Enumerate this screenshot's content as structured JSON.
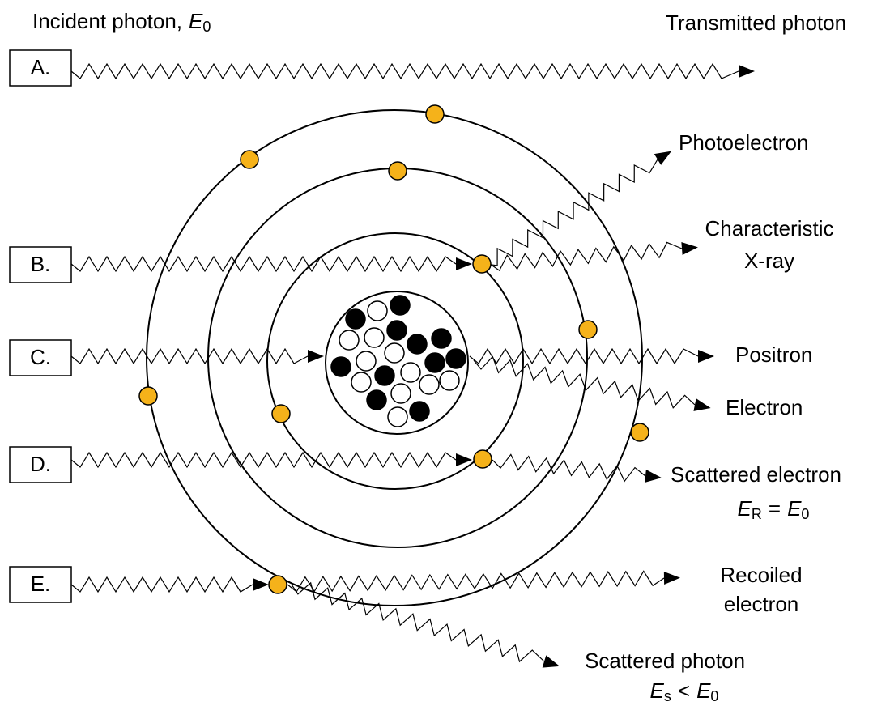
{
  "rows": [
    {
      "label": "A."
    },
    {
      "label": "B."
    },
    {
      "label": "C."
    },
    {
      "label": "D."
    },
    {
      "label": "E."
    }
  ],
  "incident_label": {
    "text": "Incident photon,",
    "symbol": "E",
    "subscript": "0"
  },
  "outcomes": {
    "transmitted": "Transmitted photon",
    "photoelectron": "Photoelectron",
    "characteristic": [
      "Characteristic",
      "X-ray"
    ],
    "positron": "Positron",
    "electron": "Electron",
    "scattered_electron": {
      "text": "Scattered electron",
      "energy": {
        "symbol": "E",
        "subscript": "R",
        "relation": "=",
        "symbol2": "E",
        "subscript2": "0"
      }
    },
    "recoiled": [
      "Recoiled",
      "electron"
    ],
    "scattered_photon": {
      "text": "Scattered photon",
      "energy": {
        "symbol": "E",
        "subscript": "s",
        "relation": "<",
        "symbol2": "E",
        "subscript2": "0"
      }
    }
  }
}
